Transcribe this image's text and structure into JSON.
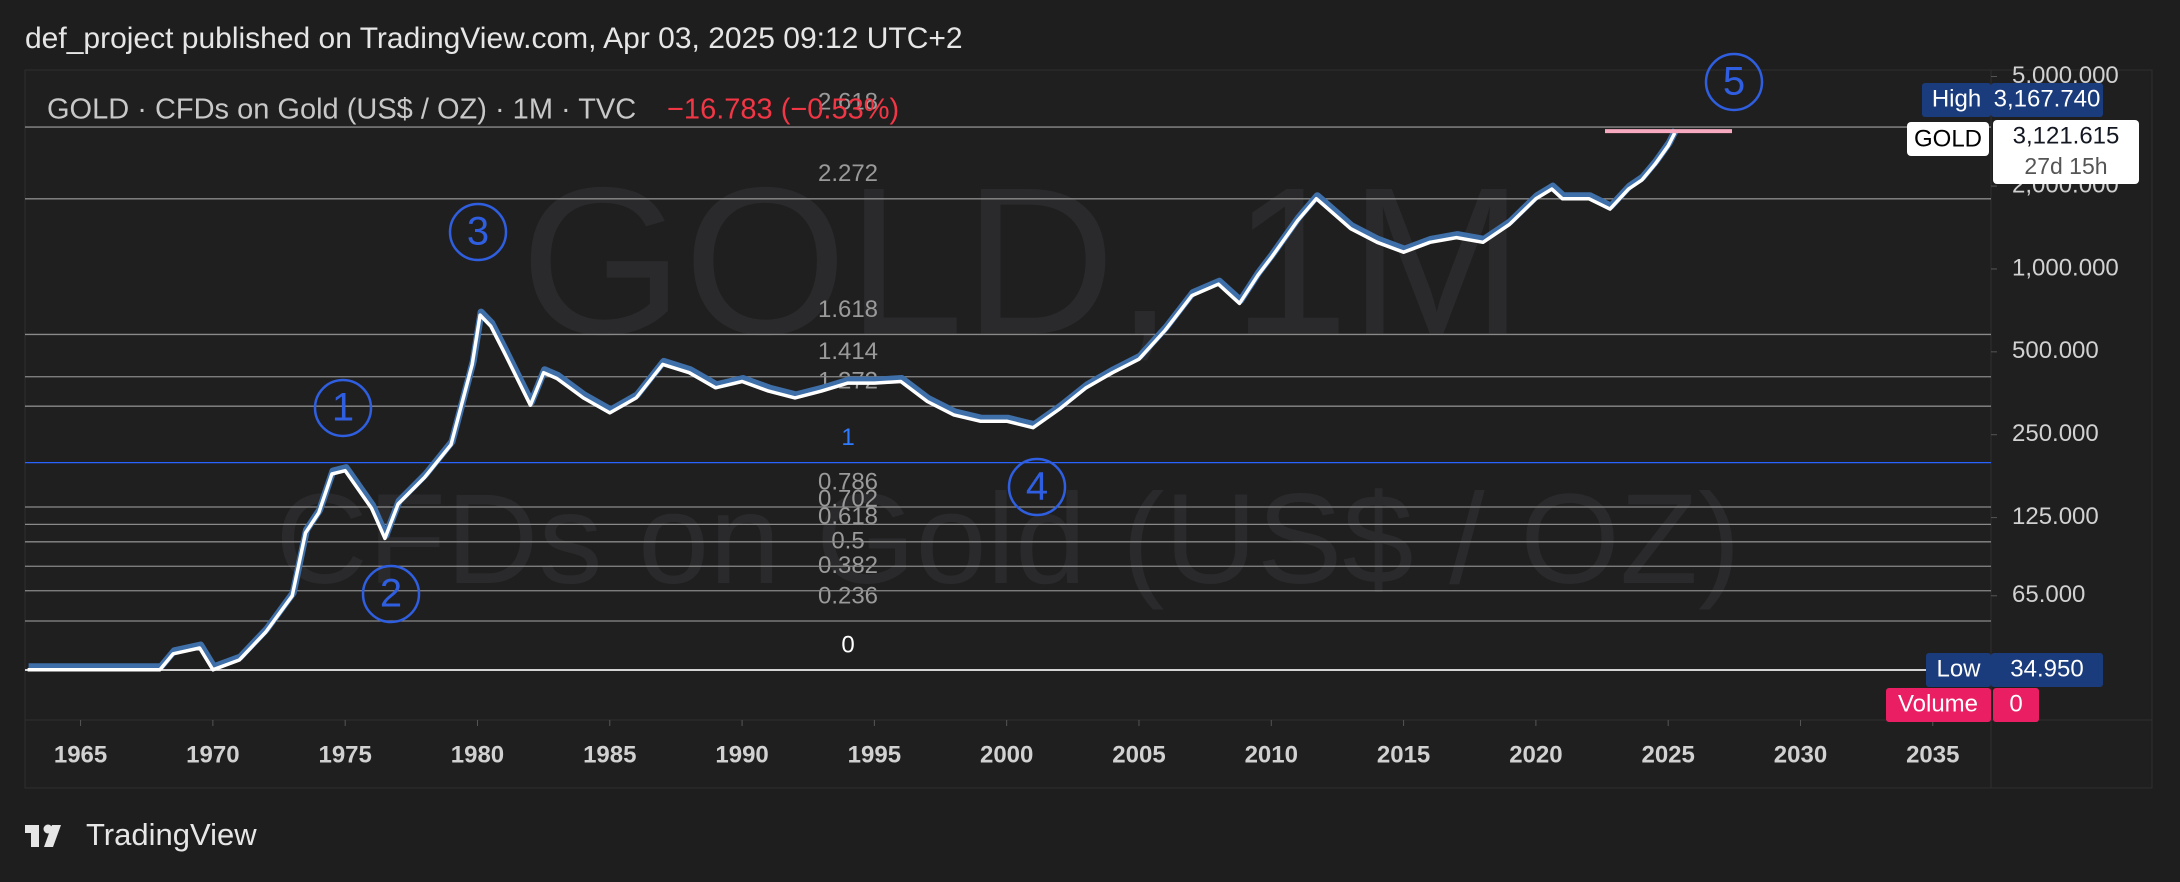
{
  "header": "def_project published on TradingView.com, Apr 03, 2025 09:12 UTC+2",
  "footer": "TradingView",
  "chart_data": {
    "type": "line",
    "title": "GOLD · CFDs on Gold (US$ / OZ) · 1M · TVC",
    "change": "−16.783 (−0.53%)",
    "watermark": [
      "GOLD, 1M",
      "CFDs on Gold (US$ / OZ)"
    ],
    "log_scale": true,
    "xlim": [
      1962.9,
      2037.2
    ],
    "xticks": [
      1965,
      1970,
      1975,
      1980,
      1985,
      1990,
      1995,
      2000,
      2005,
      2010,
      2015,
      2020,
      2025,
      2030,
      2035
    ],
    "ylim": [
      23,
      5280
    ],
    "yticks": [
      {
        "value": 5000,
        "label": "5,000.000"
      },
      {
        "value": 2000,
        "label": "2,000.000"
      },
      {
        "value": 1000,
        "label": "1,000.000"
      },
      {
        "value": 500,
        "label": "500.000"
      },
      {
        "value": 250,
        "label": "250.000"
      },
      {
        "value": 125,
        "label": "125.000"
      },
      {
        "value": 65,
        "label": "65.000"
      }
    ],
    "series": [
      {
        "name": "GOLD",
        "color": "#ffffff",
        "x": [
          1963,
          1968,
          1968.5,
          1969.5,
          1970,
          1971,
          1972,
          1973,
          1973.5,
          1974,
          1974.5,
          1975,
          1976,
          1976.5,
          1977,
          1978,
          1979,
          1979.8,
          1980.1,
          1980.5,
          1981,
          1982,
          1982.5,
          1983,
          1984,
          1985,
          1986,
          1987,
          1988,
          1989,
          1990,
          1991,
          1992,
          1993,
          1994,
          1995,
          1996,
          1997,
          1998,
          1999,
          2000,
          2001,
          2002,
          2003,
          2004,
          2005,
          2006,
          2007,
          2008,
          2008.8,
          2009.5,
          2010,
          2011,
          2011.7,
          2012,
          2013,
          2014,
          2015,
          2016,
          2017,
          2018,
          2019,
          2020,
          2020.6,
          2021,
          2022,
          2022.8,
          2023.5,
          2024,
          2024.5,
          2025,
          2025.25
        ],
        "values": [
          35,
          35,
          40,
          42,
          35,
          38,
          48,
          65,
          110,
          130,
          180,
          185,
          135,
          105,
          140,
          175,
          230,
          450,
          680,
          620,
          500,
          320,
          420,
          400,
          340,
          300,
          340,
          450,
          420,
          370,
          390,
          360,
          340,
          360,
          385,
          385,
          390,
          330,
          295,
          280,
          280,
          265,
          310,
          370,
          420,
          470,
          600,
          800,
          880,
          750,
          950,
          1100,
          1500,
          1800,
          1700,
          1400,
          1250,
          1150,
          1250,
          1300,
          1250,
          1450,
          1800,
          1950,
          1800,
          1800,
          1650,
          1950,
          2100,
          2400,
          2800,
          3121.615
        ]
      }
    ],
    "fib": {
      "base": 34.95,
      "top": 198,
      "levels": [
        0,
        0.236,
        0.382,
        0.5,
        0.618,
        0.702,
        0.786,
        1,
        1.272,
        1.414,
        1.618,
        2.272,
        2.618
      ]
    },
    "waves": [
      "1",
      "2",
      "3",
      "4",
      "5"
    ],
    "price_labels": {
      "high": {
        "name": "High",
        "value": 3167.74,
        "label": "3,167.740"
      },
      "last": {
        "name": "GOLD",
        "value": 3121.615,
        "label": "3,121.615",
        "countdown": "27d 15h"
      },
      "low": {
        "name": "Low",
        "value": 34.95,
        "label": "34.950"
      },
      "volume": {
        "name": "Volume",
        "value": 0
      }
    }
  }
}
